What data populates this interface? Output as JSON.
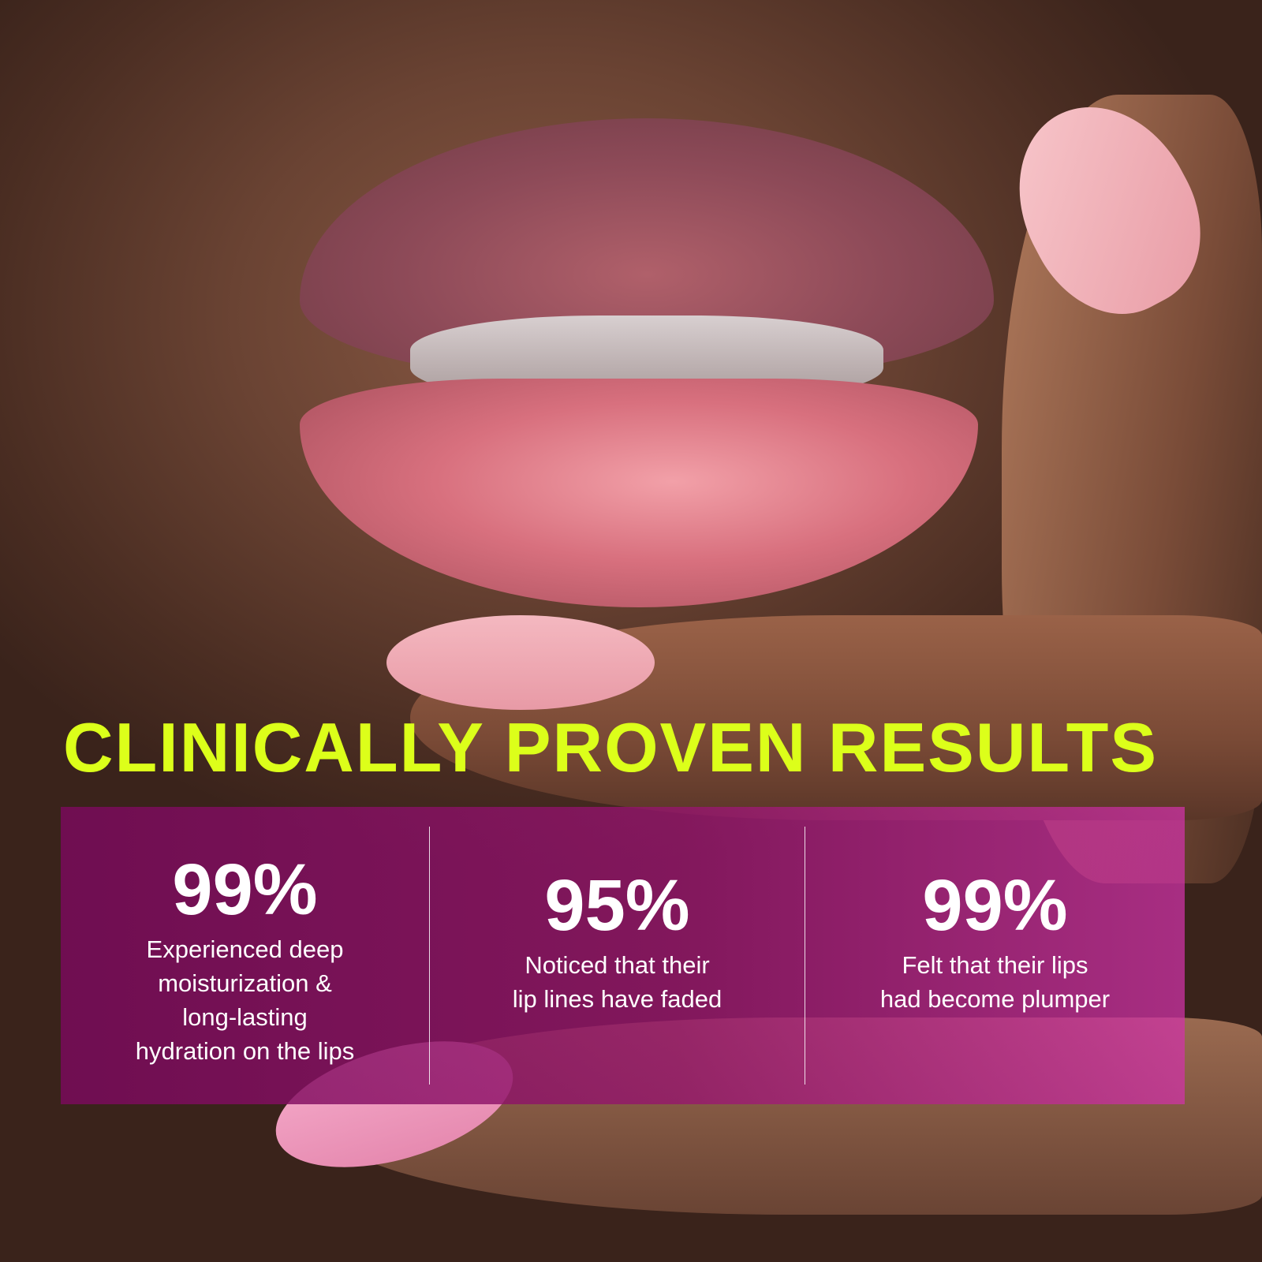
{
  "title": "CLINICALLY PROVEN RESULTS",
  "colors": {
    "title": "#dcff1a",
    "panel": "#8a1470",
    "text": "#ffffff"
  },
  "stats": [
    {
      "value": "99%",
      "lines": [
        "Experienced deep",
        "moisturization &",
        "long-lasting",
        "hydration on the lips"
      ]
    },
    {
      "value": "95%",
      "lines": [
        "Noticed that their",
        "lip lines have faded"
      ]
    },
    {
      "value": "99%",
      "lines": [
        "Felt that their lips",
        "had become plumper"
      ]
    }
  ]
}
